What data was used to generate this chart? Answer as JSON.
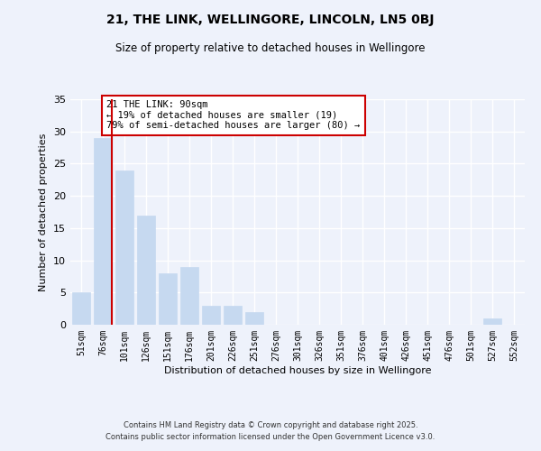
{
  "title": "21, THE LINK, WELLINGORE, LINCOLN, LN5 0BJ",
  "subtitle": "Size of property relative to detached houses in Wellingore",
  "xlabel": "Distribution of detached houses by size in Wellingore",
  "ylabel": "Number of detached properties",
  "categories": [
    "51sqm",
    "76sqm",
    "101sqm",
    "126sqm",
    "151sqm",
    "176sqm",
    "201sqm",
    "226sqm",
    "251sqm",
    "276sqm",
    "301sqm",
    "326sqm",
    "351sqm",
    "376sqm",
    "401sqm",
    "426sqm",
    "451sqm",
    "476sqm",
    "501sqm",
    "527sqm",
    "552sqm"
  ],
  "values": [
    5,
    29,
    24,
    17,
    8,
    9,
    3,
    3,
    2,
    0,
    0,
    0,
    0,
    0,
    0,
    0,
    0,
    0,
    0,
    1,
    0
  ],
  "bar_color": "#c6d9f0",
  "bar_edge_color": "#c6d9f0",
  "marker_label": "21 THE LINK: 90sqm",
  "annotation_line1": "← 19% of detached houses are smaller (19)",
  "annotation_line2": "79% of semi-detached houses are larger (80) →",
  "ylim": [
    0,
    35
  ],
  "yticks": [
    0,
    5,
    10,
    15,
    20,
    25,
    30,
    35
  ],
  "background_color": "#eef2fb",
  "grid_color": "#ffffff",
  "footer1": "Contains HM Land Registry data © Crown copyright and database right 2025.",
  "footer2": "Contains public sector information licensed under the Open Government Licence v3.0.",
  "red_line_color": "#cc0000",
  "annotation_box_edge": "#cc0000"
}
